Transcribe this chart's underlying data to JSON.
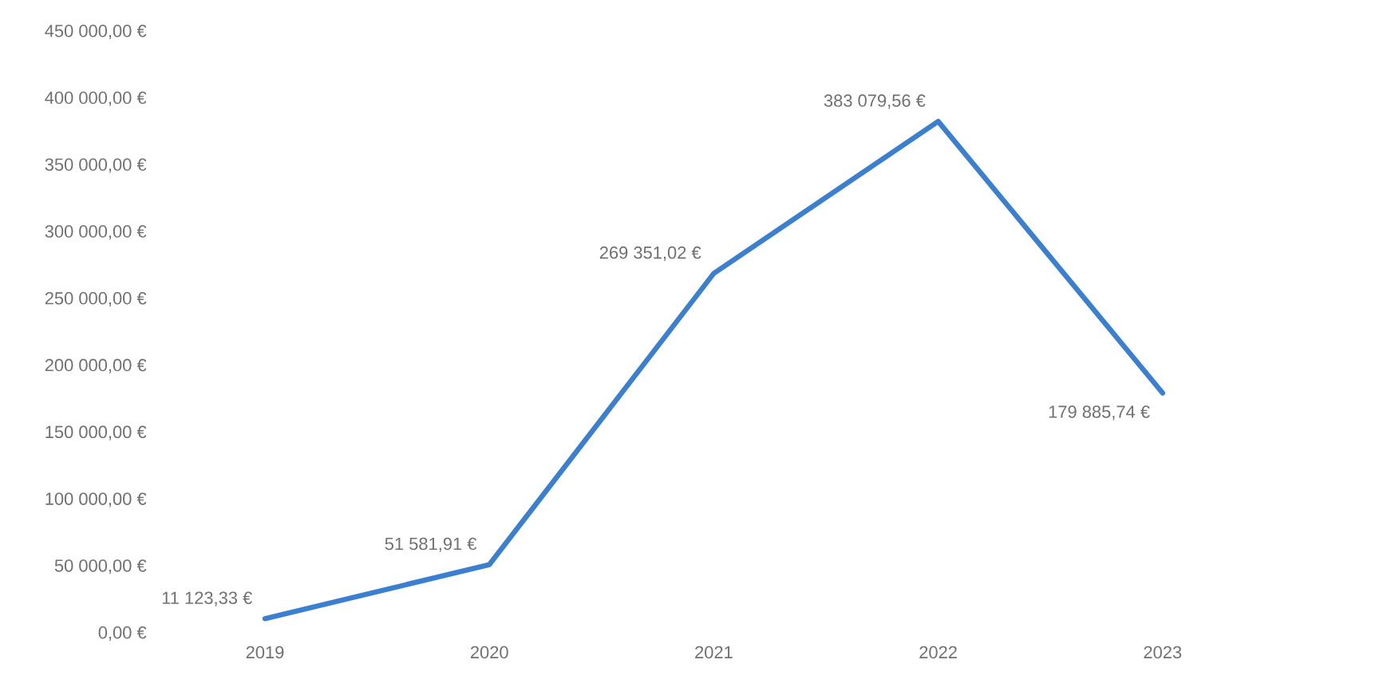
{
  "chart_data": {
    "type": "line",
    "categories": [
      "2019",
      "2020",
      "2021",
      "2022",
      "2023"
    ],
    "values": [
      11123.33,
      51581.91,
      269351.02,
      383079.56,
      179885.74
    ],
    "value_labels": [
      "11 123,33 €",
      "51 581,91 €",
      "269 351,02 €",
      "383 079,56 €",
      "179 885,74 €"
    ],
    "color": "#3a7fd0",
    "ylim": [
      0,
      450000
    ],
    "yticks": [
      {
        "value": 0,
        "label": "0,00 €"
      },
      {
        "value": 50000,
        "label": "50 000,00 €"
      },
      {
        "value": 100000,
        "label": "100 000,00 €"
      },
      {
        "value": 150000,
        "label": "150 000,00 €"
      },
      {
        "value": 200000,
        "label": "200 000,00 €"
      },
      {
        "value": 250000,
        "label": "250 000,00 €"
      },
      {
        "value": 300000,
        "label": "300 000,00 €"
      },
      {
        "value": 350000,
        "label": "350 000,00 €"
      },
      {
        "value": 400000,
        "label": "400 000,00 €"
      },
      {
        "value": 450000,
        "label": "450 000,00 €"
      }
    ]
  }
}
